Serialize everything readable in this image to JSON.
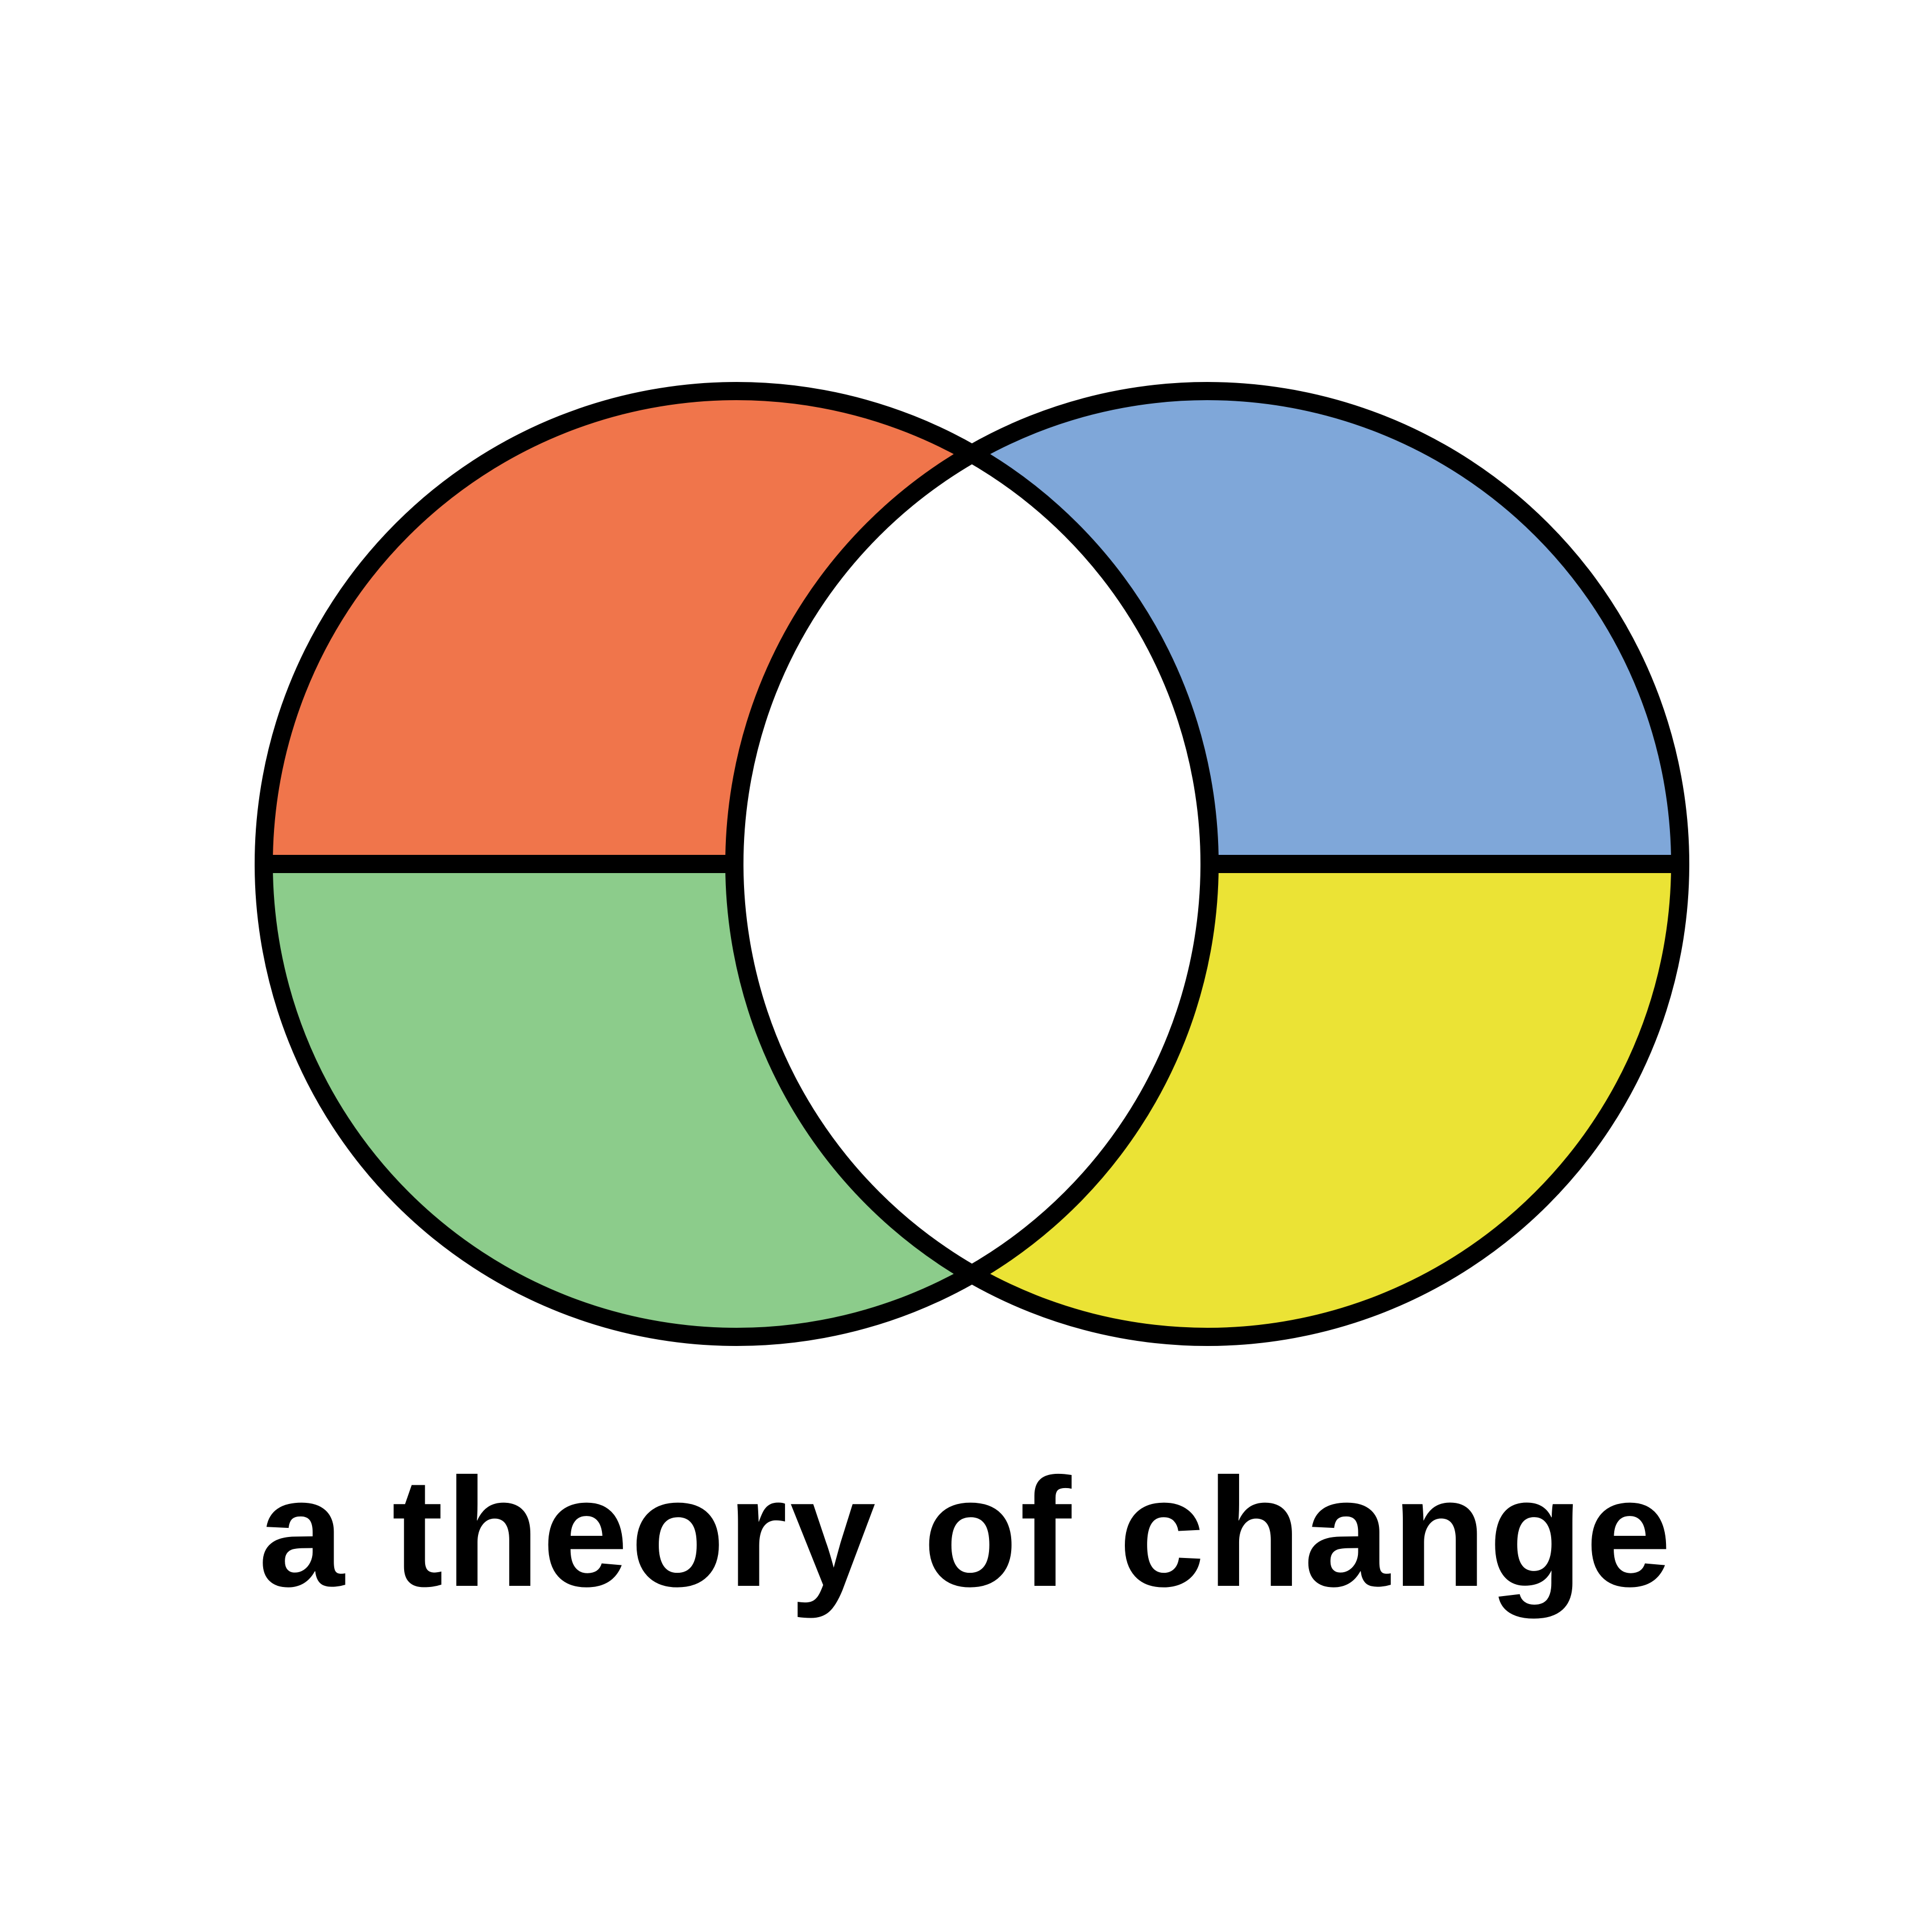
{
  "caption": "a theory of change",
  "colors": {
    "top_left": "#F0754B",
    "top_right": "#7FA7D9",
    "bottom_left": "#8CCC8B",
    "bottom_right": "#EBE335",
    "center": "#FFFFFF",
    "outline": "#000000",
    "background": "#FFFFFF"
  }
}
